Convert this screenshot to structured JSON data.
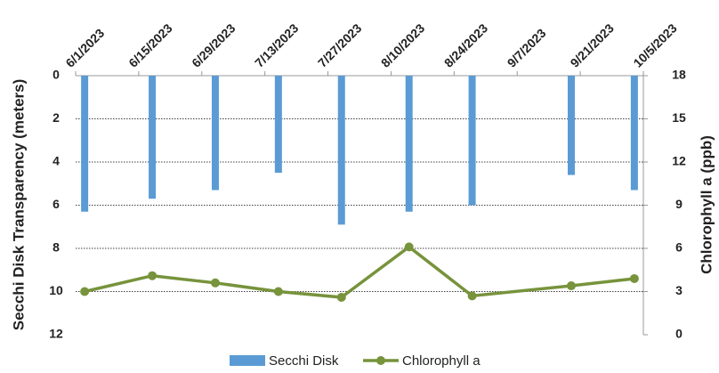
{
  "chart_data": {
    "type": "bar-line",
    "x": [
      "6/3/2023",
      "6/18/2023",
      "7/2/2023",
      "7/16/2023",
      "7/30/2023",
      "8/14/2023",
      "8/28/2023",
      "9/19/2023",
      "10/3/2023"
    ],
    "xlim": [
      "6/1/2023",
      "10/5/2023"
    ],
    "xticks": [
      "6/1/2023",
      "6/15/2023",
      "6/29/2023",
      "7/13/2023",
      "7/27/2023",
      "8/10/2023",
      "8/24/2023",
      "9/7/2023",
      "9/21/2023",
      "10/5/2023"
    ],
    "series": [
      {
        "name": "Secchi Disk",
        "color": "#5b9bd5",
        "type": "bar",
        "values": [
          6.3,
          5.7,
          5.3,
          4.5,
          6.9,
          6.3,
          6.0,
          4.6,
          5.3
        ]
      },
      {
        "name": "Chlorophyll a",
        "color": "#77933c",
        "type": "line",
        "axis": "y2",
        "values": [
          3.0,
          4.1,
          3.6,
          3.0,
          2.6,
          6.1,
          2.7,
          3.4,
          3.9
        ]
      }
    ],
    "y_label": "Secchi Disk Transparency (meters)",
    "y2_label": "Chlorophyll a (ppb)",
    "ylim": [
      0,
      12
    ],
    "yticks": [
      0,
      2,
      4,
      6,
      8,
      10,
      12
    ],
    "y_inverted": true,
    "y2lim": [
      0,
      18
    ],
    "y2ticks": [
      0,
      3,
      6,
      9,
      12,
      15,
      18
    ],
    "grid": true,
    "legend": "bottom"
  }
}
